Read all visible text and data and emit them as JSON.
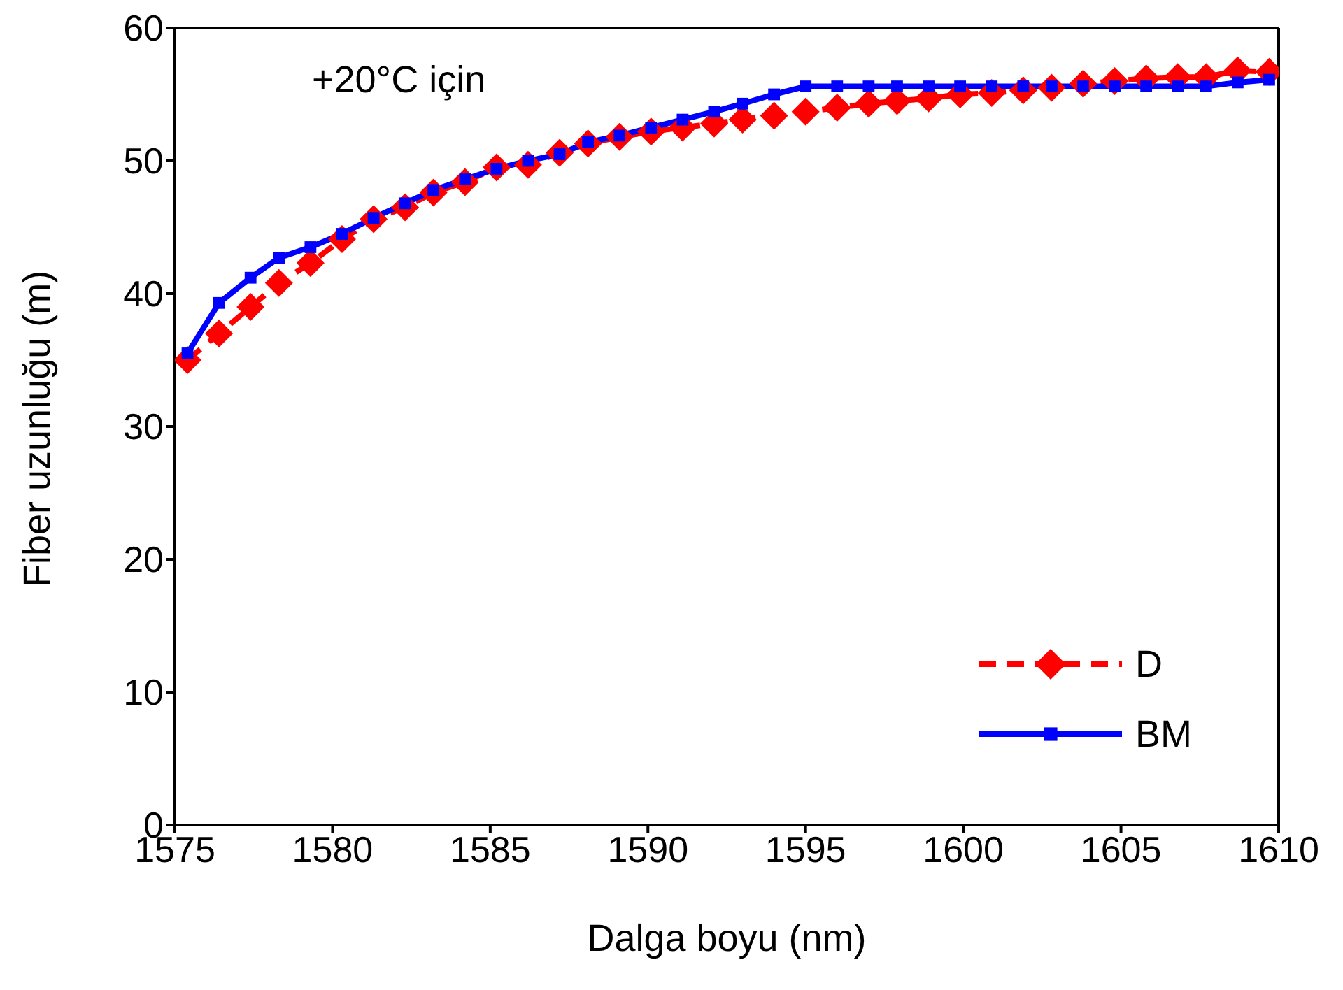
{
  "chart_data": {
    "type": "line",
    "xlabel": "Dalga boyu (nm)",
    "ylabel": "Fiber uzunluğu (m)",
    "annotations": [
      "+20°C için"
    ],
    "x": [
      1575.4,
      1576.4,
      1577.4,
      1578.3,
      1579.3,
      1580.3,
      1581.3,
      1582.3,
      1583.2,
      1584.2,
      1585.2,
      1586.2,
      1587.2,
      1588.1,
      1589.1,
      1590.1,
      1591.1,
      1592.1,
      1593.0,
      1594.0,
      1595.0,
      1596.0,
      1597.0,
      1597.9,
      1598.9,
      1599.9,
      1600.9,
      1601.9,
      1602.8,
      1603.8,
      1604.8,
      1605.8,
      1606.8,
      1607.7,
      1608.7,
      1609.7
    ],
    "series": [
      {
        "name": "D",
        "color": "#ff0000",
        "marker": "diamond",
        "line_style": "dashed",
        "values": [
          35.0,
          37.0,
          39.0,
          40.8,
          42.3,
          44.1,
          45.6,
          46.5,
          47.6,
          48.4,
          49.5,
          49.7,
          50.6,
          51.3,
          51.8,
          52.2,
          52.5,
          52.8,
          53.1,
          53.4,
          53.7,
          54.0,
          54.3,
          54.5,
          54.7,
          55.0,
          55.1,
          55.3,
          55.5,
          55.8,
          56.0,
          56.2,
          56.3,
          56.3,
          56.8,
          56.7
        ]
      },
      {
        "name": "BM",
        "color": "#0000ff",
        "marker": "square",
        "line_style": "solid",
        "values": [
          35.5,
          39.3,
          41.2,
          42.7,
          43.5,
          44.5,
          45.7,
          46.8,
          47.8,
          48.6,
          49.4,
          50.0,
          50.5,
          51.4,
          51.9,
          52.5,
          53.1,
          53.7,
          54.3,
          55.0,
          55.6,
          55.6,
          55.6,
          55.6,
          55.6,
          55.6,
          55.6,
          55.6,
          55.6,
          55.6,
          55.6,
          55.6,
          55.6,
          55.6,
          55.9,
          56.1
        ]
      }
    ],
    "xlim": [
      1575,
      1610
    ],
    "xticks": [
      1575,
      1580,
      1585,
      1590,
      1595,
      1600,
      1605,
      1610
    ],
    "ylim": [
      0,
      60
    ],
    "yticks": [
      0,
      10,
      20,
      30,
      40,
      50,
      60
    ],
    "grid": false,
    "legend": "bottom right"
  }
}
